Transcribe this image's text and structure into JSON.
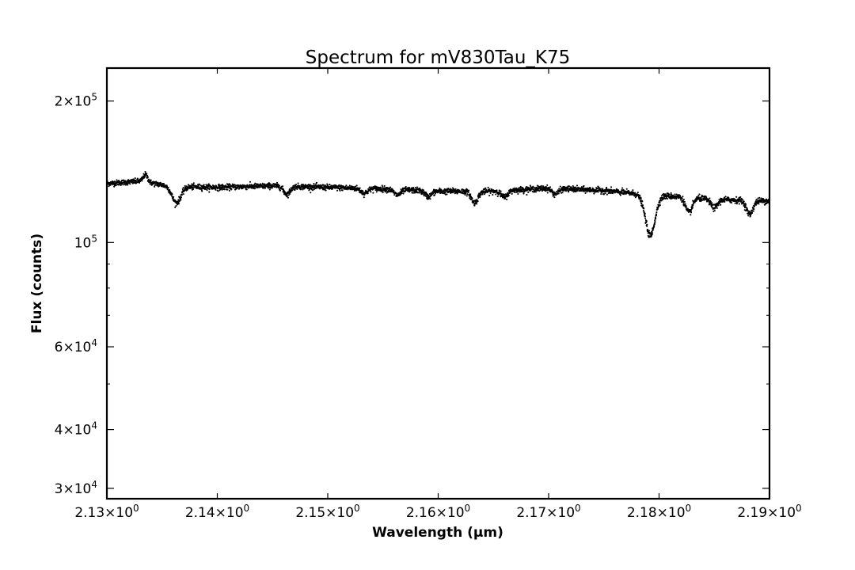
{
  "chart_data": {
    "type": "scatter",
    "title": "Spectrum for mV830Tau_K75",
    "xlabel": "Wavelength (μm)",
    "ylabel": "Flux (counts)",
    "xscale": "linear",
    "yscale": "log",
    "xlim": [
      2.13,
      2.19
    ],
    "ylim": [
      28500,
      235000
    ],
    "grid": false,
    "legend": "none",
    "marker_color": "#000000",
    "x_ticks": [
      {
        "value": 2.13,
        "mantissa": "2.13",
        "sep": "×",
        "base": "10",
        "exp": "0"
      },
      {
        "value": 2.14,
        "mantissa": "2.14",
        "sep": "×",
        "base": "10",
        "exp": "0"
      },
      {
        "value": 2.15,
        "mantissa": "2.15",
        "sep": "×",
        "base": "10",
        "exp": "0"
      },
      {
        "value": 2.16,
        "mantissa": "2.16",
        "sep": "×",
        "base": "10",
        "exp": "0"
      },
      {
        "value": 2.17,
        "mantissa": "2.17",
        "sep": "×",
        "base": "10",
        "exp": "0"
      },
      {
        "value": 2.18,
        "mantissa": "2.18",
        "sep": "×",
        "base": "10",
        "exp": "0"
      },
      {
        "value": 2.19,
        "mantissa": "2.19",
        "sep": "×",
        "base": "10",
        "exp": "0"
      }
    ],
    "y_ticks": [
      {
        "value": 200000,
        "mantissa": "2",
        "sep": "×",
        "base": "10",
        "exp": "5"
      },
      {
        "value": 100000,
        "mantissa": "",
        "sep": "",
        "base": "10",
        "exp": "5"
      },
      {
        "value": 60000,
        "mantissa": "6",
        "sep": "×",
        "base": "10",
        "exp": "4"
      },
      {
        "value": 40000,
        "mantissa": "4",
        "sep": "×",
        "base": "10",
        "exp": "4"
      },
      {
        "value": 30000,
        "mantissa": "3",
        "sep": "×",
        "base": "10",
        "exp": "4"
      }
    ],
    "y_minor_ticks": [
      50000,
      70000,
      80000,
      90000
    ],
    "continuum": {
      "x": [
        2.13,
        2.133,
        2.136,
        2.14,
        2.145,
        2.15,
        2.155,
        2.16,
        2.165,
        2.17,
        2.175,
        2.178,
        2.18,
        2.185,
        2.19
      ],
      "y": [
        133500,
        135000,
        131500,
        131000,
        132000,
        131000,
        130000,
        128500,
        128500,
        130500,
        129000,
        127000,
        126000,
        123500,
        122500
      ]
    },
    "absorption_features": [
      {
        "center": 2.1335,
        "depth": -5000,
        "width": 0.0002
      },
      {
        "center": 2.1363,
        "depth": 10000,
        "width": 0.0004
      },
      {
        "center": 2.1463,
        "depth": 5000,
        "width": 0.0003
      },
      {
        "center": 2.1533,
        "depth": 3000,
        "width": 0.0003
      },
      {
        "center": 2.1563,
        "depth": 3500,
        "width": 0.0003
      },
      {
        "center": 2.1591,
        "depth": 3500,
        "width": 0.0003
      },
      {
        "center": 2.1633,
        "depth": 7000,
        "width": 0.0003
      },
      {
        "center": 2.166,
        "depth": 4000,
        "width": 0.0003
      },
      {
        "center": 2.1706,
        "depth": 3500,
        "width": 0.0003
      },
      {
        "center": 2.1792,
        "depth": 23000,
        "width": 0.00045
      },
      {
        "center": 2.1827,
        "depth": 9000,
        "width": 0.0003
      },
      {
        "center": 2.185,
        "depth": 5000,
        "width": 0.0003
      },
      {
        "center": 2.1882,
        "depth": 8000,
        "width": 0.0003
      }
    ],
    "noise_sigma": 900,
    "n_points": 3400
  }
}
